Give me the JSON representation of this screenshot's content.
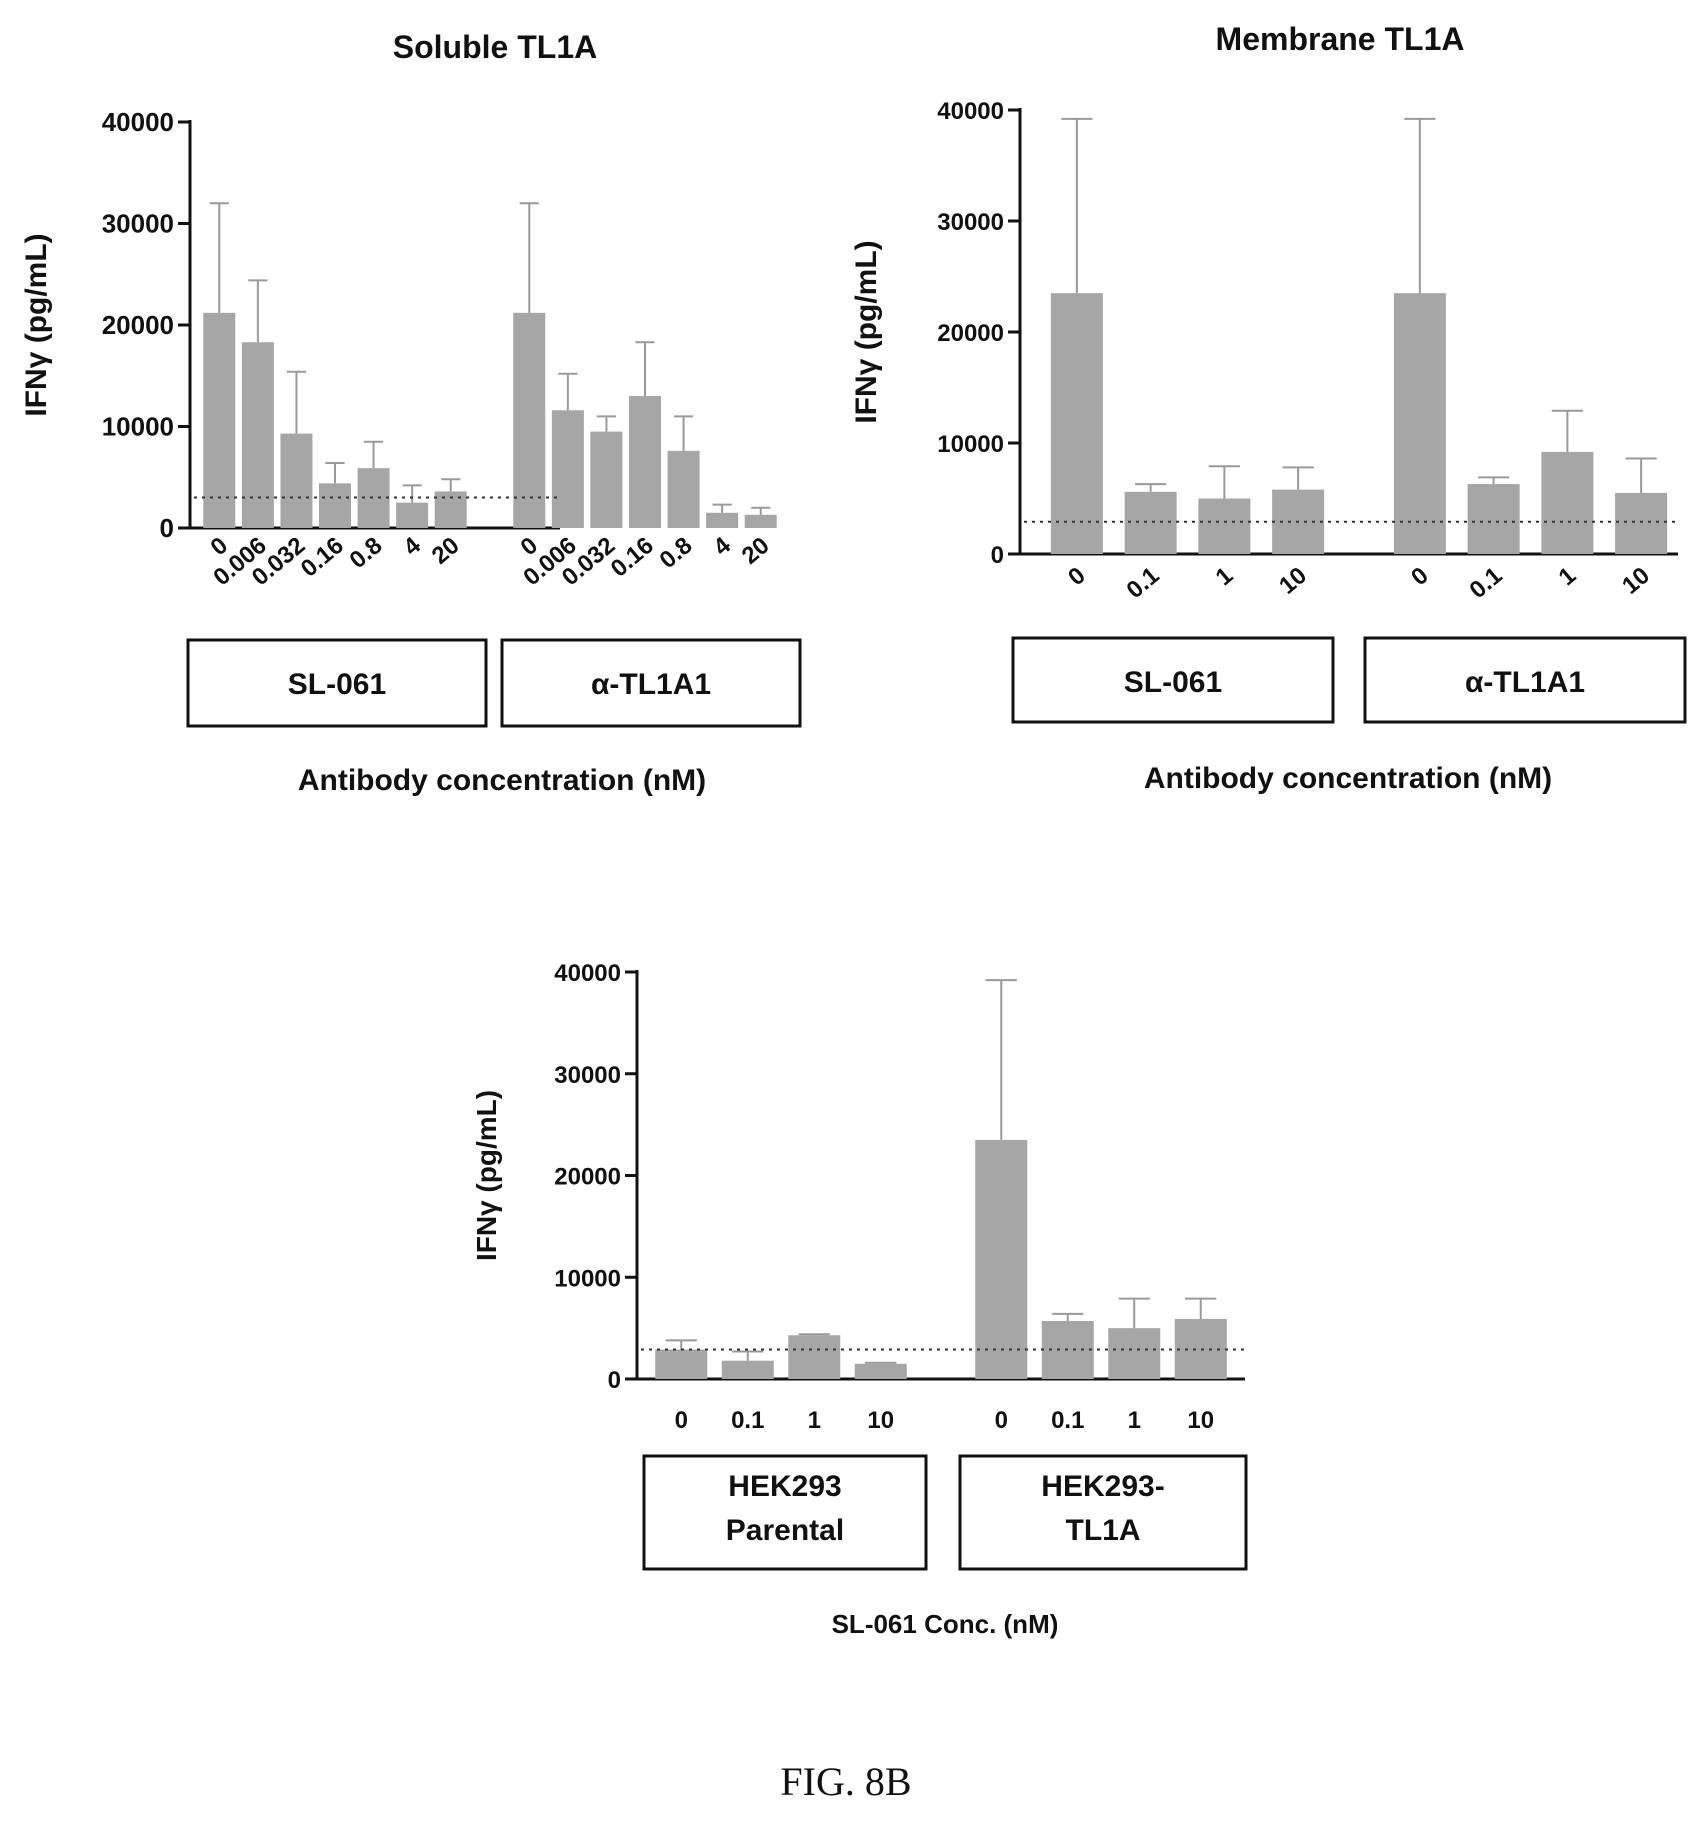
{
  "figure_label": "FIG. 8B",
  "chart_data": [
    {
      "id": "soluble",
      "type": "bar",
      "title": "Soluble TL1A",
      "ylabel": "IFNγ (pg/mL)",
      "xlabel": "Antibody concentration (nM)",
      "ylim": [
        0,
        40000
      ],
      "yticks": [
        0,
        10000,
        20000,
        30000,
        40000
      ],
      "reference_line": 3000,
      "groups": [
        {
          "label": "SL-061",
          "categories": [
            "0",
            "0.006",
            "0.032",
            "0.16",
            "0.8",
            "4",
            "20"
          ],
          "values": [
            21200,
            18300,
            9300,
            4400,
            5900,
            2500,
            3600
          ],
          "errors": [
            10800,
            6100,
            6100,
            2000,
            2600,
            1700,
            1200
          ]
        },
        {
          "label": "α-TL1A1",
          "categories": [
            "0",
            "0.006",
            "0.032",
            "0.16",
            "0.8",
            "4",
            "20"
          ],
          "values": [
            21200,
            11600,
            9500,
            13000,
            7600,
            1500,
            1300
          ],
          "errors": [
            10800,
            3600,
            1500,
            5300,
            3400,
            800,
            700
          ]
        }
      ]
    },
    {
      "id": "membrane",
      "type": "bar",
      "title": "Membrane TL1A",
      "ylabel": "IFNγ (pg/mL)",
      "xlabel": "Antibody concentration (nM)",
      "ylim": [
        0,
        40000
      ],
      "yticks": [
        0,
        10000,
        20000,
        30000,
        40000
      ],
      "reference_line": 2900,
      "groups": [
        {
          "label": "SL-061",
          "categories": [
            "0",
            "0.1",
            "1",
            "10"
          ],
          "values": [
            23500,
            5600,
            5000,
            5800
          ],
          "errors": [
            15700,
            700,
            2900,
            2000
          ]
        },
        {
          "label": "α-TL1A1",
          "categories": [
            "0",
            "0.1",
            "1",
            "10"
          ],
          "values": [
            23500,
            6300,
            9200,
            5500
          ],
          "errors": [
            15700,
            600,
            3700,
            3100
          ]
        }
      ]
    },
    {
      "id": "hek",
      "type": "bar",
      "title": "",
      "ylabel": "IFNγ (pg/mL)",
      "xlabel": "SL-061 Conc. (nM)",
      "ylim": [
        0,
        40000
      ],
      "yticks": [
        0,
        10000,
        20000,
        30000,
        40000
      ],
      "reference_line": 2900,
      "groups": [
        {
          "label": "HEK293 Parental",
          "categories": [
            "0",
            "0.1",
            "1",
            "10"
          ],
          "values": [
            2900,
            1800,
            4300,
            1500
          ],
          "errors": [
            900,
            900,
            100,
            100
          ]
        },
        {
          "label": "HEK293- TL1A",
          "categories": [
            "0",
            "0.1",
            "1",
            "10"
          ],
          "values": [
            23500,
            5700,
            5000,
            5900
          ],
          "errors": [
            15700,
            700,
            2900,
            2000
          ]
        }
      ]
    }
  ]
}
